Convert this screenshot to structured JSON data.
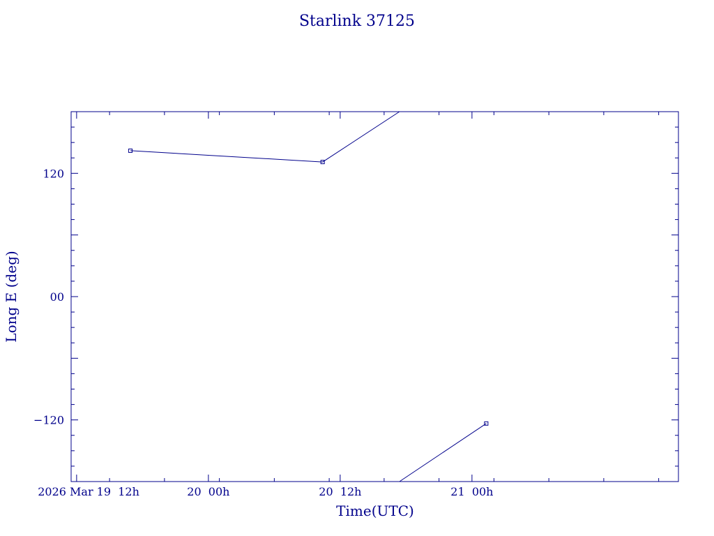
{
  "chart_data": {
    "type": "line",
    "title": "Starlink 37125",
    "xlabel": "Time(UTC)",
    "ylabel": "Long E (deg)",
    "x_unit": "hours since 2026 Mar 19 00h UTC",
    "xlim": [
      11.5,
      66.8
    ],
    "ylim": [
      -180,
      180
    ],
    "x_ticks": [
      {
        "value": 12,
        "label": "2026 Mar 19  12h"
      },
      {
        "value": 24,
        "label": "20  00h"
      },
      {
        "value": 36,
        "label": "20  12h"
      },
      {
        "value": 48,
        "label": "21  00h"
      }
    ],
    "y_ticks": [
      {
        "value": 120,
        "label": "120"
      },
      {
        "value": 0,
        "label": "00"
      },
      {
        "value": -120,
        "label": "−120"
      }
    ],
    "series": [
      {
        "name": "",
        "color": "#00008b",
        "segments": [
          [
            [
              16.9,
              142.0
            ],
            [
              34.4,
              131.0
            ],
            [
              41.4,
              180.0
            ]
          ],
          [
            [
              41.4,
              -180.0
            ],
            [
              49.3,
              -123.5
            ]
          ]
        ],
        "markers": [
          [
            16.9,
            142.0
          ],
          [
            34.4,
            131.0
          ],
          [
            49.3,
            -123.5
          ]
        ]
      }
    ],
    "grid": false,
    "legend": "none"
  }
}
